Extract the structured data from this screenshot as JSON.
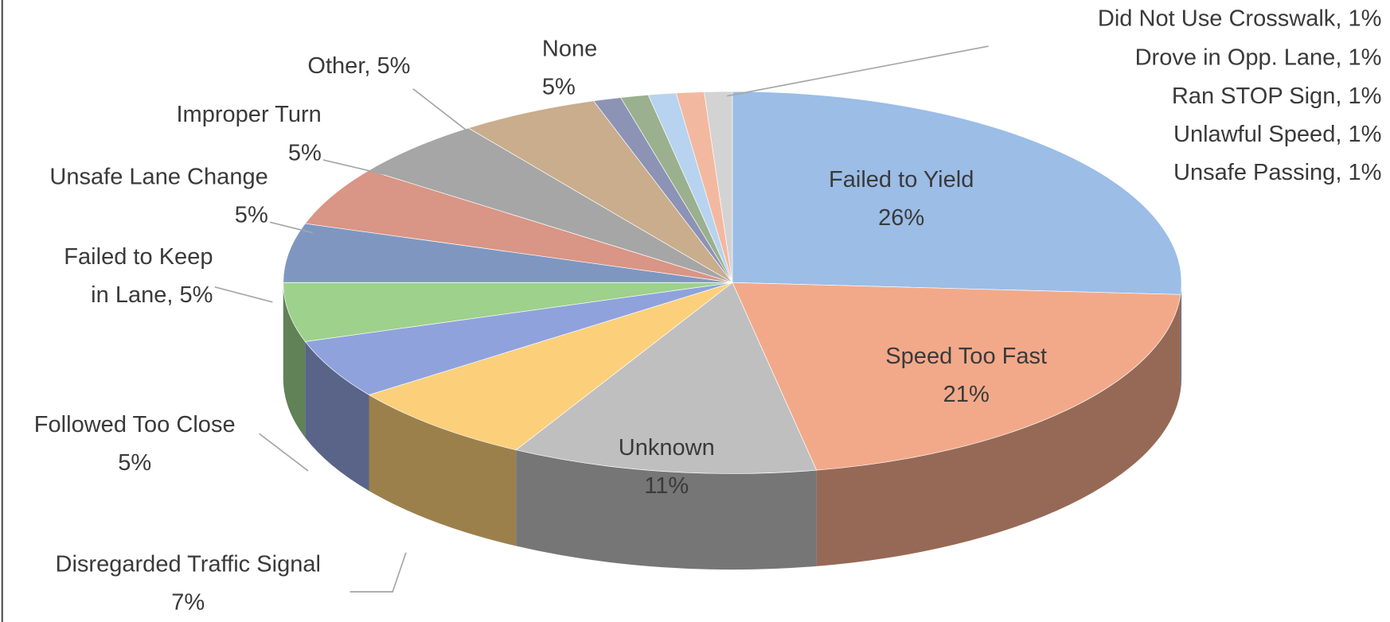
{
  "chart_data": {
    "type": "pie",
    "labels": [
      "Failed to Yield\n26%",
      "Speed Too Fast\n21%",
      "Unknown\n11%",
      "Disregarded Traffic Signal\n7%",
      "Followed Too Close\n5%",
      "Failed to Keep\nin Lane, 5%",
      "Unsafe Lane Change\n5%",
      "Improper Turn\n5%",
      "Other, 5%",
      "None\n5%",
      "Unsafe Passing, 1%",
      "Unlawful Speed, 1%",
      "Ran STOP Sign, 1%",
      "Drove in Opp. Lane, 1%",
      "Did Not Use Crosswalk, 1%"
    ],
    "values": [
      26,
      21,
      11,
      7,
      5,
      5,
      5,
      5,
      5,
      5,
      1,
      1,
      1,
      1,
      1
    ],
    "colors": [
      "#9bbde6",
      "#f2a98a",
      "#bfbfbf",
      "#fccf7b",
      "#8fa2dc",
      "#9dd18c",
      "#7f97c0",
      "#d99585",
      "#a6a6a6",
      "#c9ad8c",
      "#8d93b5",
      "#9bb08e",
      "#b7d3ef",
      "#f3b8a0",
      "#d3d3d3"
    ]
  }
}
